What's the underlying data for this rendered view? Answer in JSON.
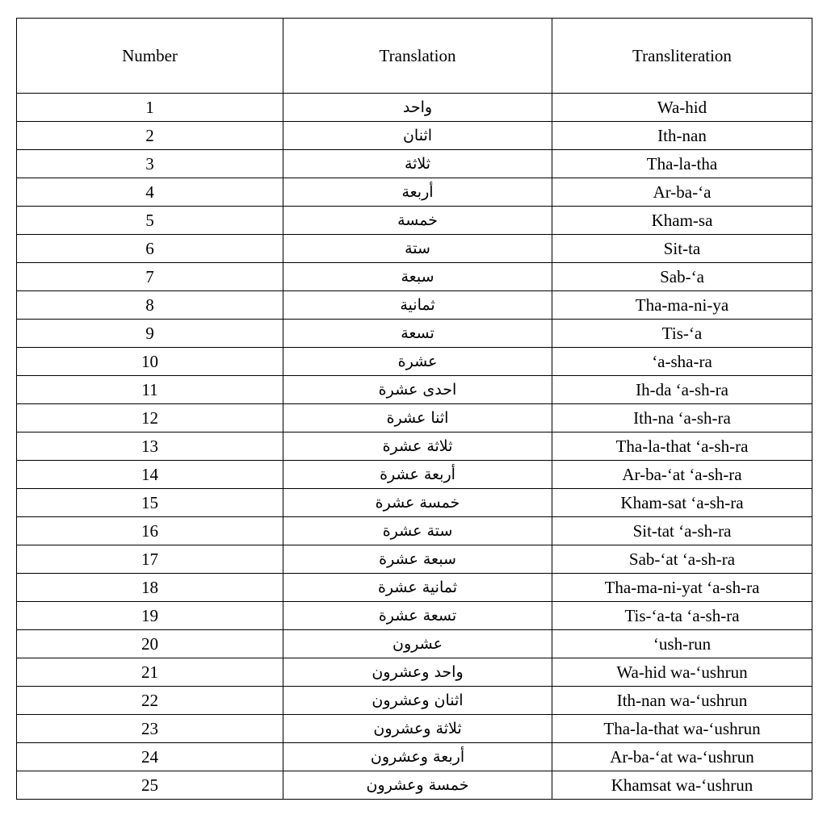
{
  "table": {
    "headers": [
      "Number",
      "Translation",
      "Transliteration"
    ],
    "rows": [
      {
        "number": "1",
        "translation": "واحد",
        "transliteration": "Wa-hid"
      },
      {
        "number": "2",
        "translation": "اثنان",
        "transliteration": "Ith-nan"
      },
      {
        "number": "3",
        "translation": "ثلاثة",
        "transliteration": "Tha-la-tha"
      },
      {
        "number": "4",
        "translation": "أربعة",
        "transliteration": "Ar-ba-‘a"
      },
      {
        "number": "5",
        "translation": "خمسة",
        "transliteration": "Kham-sa"
      },
      {
        "number": "6",
        "translation": "ستة",
        "transliteration": "Sit-ta"
      },
      {
        "number": "7",
        "translation": "سبعة",
        "transliteration": "Sab-‘a"
      },
      {
        "number": "8",
        "translation": "ثمانية",
        "transliteration": "Tha-ma-ni-ya"
      },
      {
        "number": "9",
        "translation": "تسعة",
        "transliteration": "Tis-‘a"
      },
      {
        "number": "10",
        "translation": "عشرة",
        "transliteration": "‘a-sha-ra"
      },
      {
        "number": "11",
        "translation": "احدى عشرة",
        "transliteration": "Ih-da ‘a-sh-ra"
      },
      {
        "number": "12",
        "translation": "اثنا عشرة",
        "transliteration": "Ith-na ‘a-sh-ra"
      },
      {
        "number": "13",
        "translation": "ثلاثة عشرة",
        "transliteration": "Tha-la-that ‘a-sh-ra"
      },
      {
        "number": "14",
        "translation": "أربعة عشرة",
        "transliteration": "Ar-ba-‘at ‘a-sh-ra"
      },
      {
        "number": "15",
        "translation": "خمسة عشرة",
        "transliteration": "Kham-sat ‘a-sh-ra"
      },
      {
        "number": "16",
        "translation": "ستة عشرة",
        "transliteration": "Sit-tat ‘a-sh-ra"
      },
      {
        "number": "17",
        "translation": "سبعة عشرة",
        "transliteration": "Sab-‘at ‘a-sh-ra"
      },
      {
        "number": "18",
        "translation": "ثمانية عشرة",
        "transliteration": "Tha-ma-ni-yat ‘a-sh-ra"
      },
      {
        "number": "19",
        "translation": "تسعة عشرة",
        "transliteration": "Tis-‘a-ta ‘a-sh-ra"
      },
      {
        "number": "20",
        "translation": "عشرون",
        "transliteration": "‘ush-run"
      },
      {
        "number": "21",
        "translation": "واحد وعشرون",
        "transliteration": "Wa-hid wa-‘ushrun"
      },
      {
        "number": "22",
        "translation": "اثنان وعشرون",
        "transliteration": "Ith-nan wa-‘ushrun"
      },
      {
        "number": "23",
        "translation": "ثلاثة وعشرون",
        "transliteration": "Tha-la-that wa-‘ushrun"
      },
      {
        "number": "24",
        "translation": "أربعة وعشرون",
        "transliteration": "Ar-ba-‘at wa-‘ushrun"
      },
      {
        "number": "25",
        "translation": "خمسة وعشرون",
        "transliteration": "Khamsat wa-‘ushrun"
      }
    ]
  }
}
